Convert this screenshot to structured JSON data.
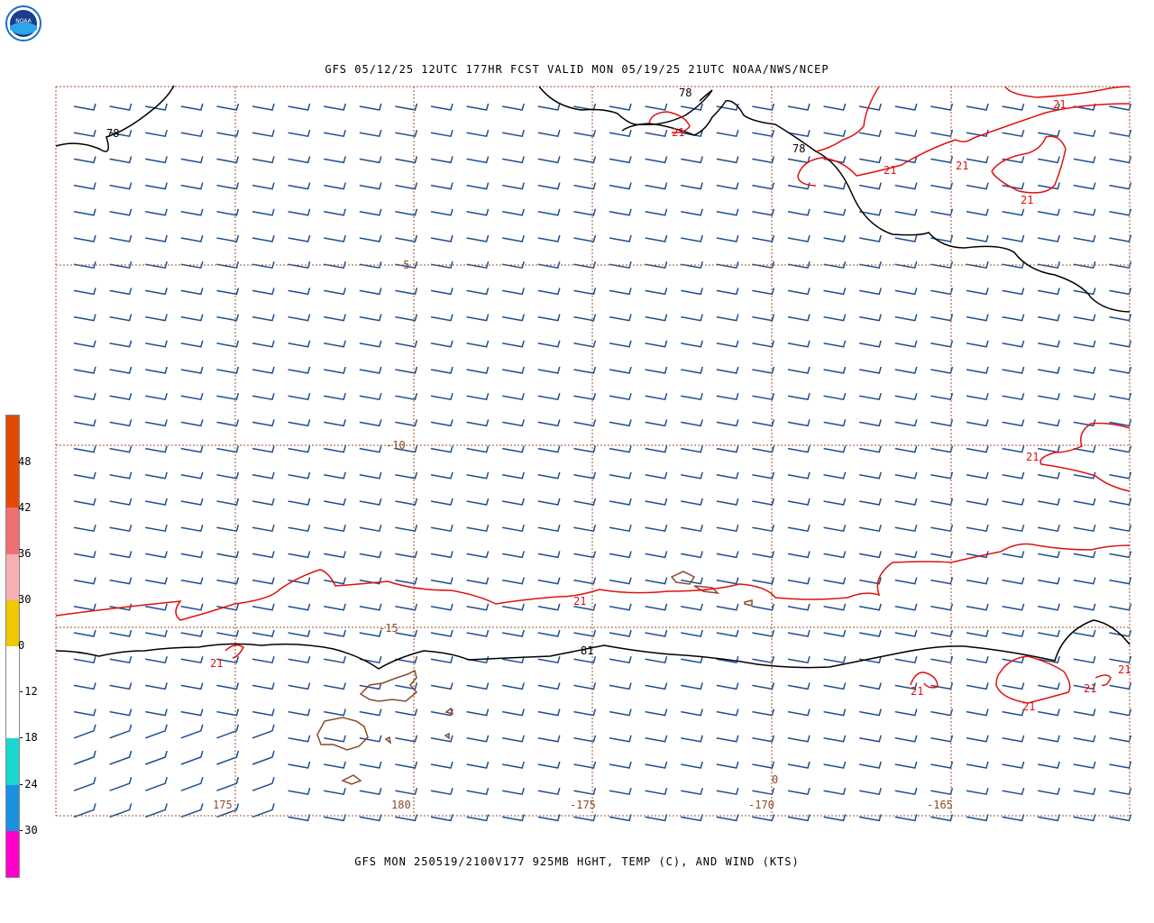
{
  "header": {
    "title": "GFS 05/12/25 12UTC 177HR FCST VALID MON 05/19/25 21UTC NOAA/NWS/NCEP",
    "logo_text": "NOAA"
  },
  "footer": {
    "title": "GFS MON 250519/2100V177 925MB HGHT, TEMP (C), AND WIND (KTS)"
  },
  "map": {
    "lat_labels": [
      "-5",
      "-10",
      "-15"
    ],
    "lon_labels": [
      "175",
      "180",
      "-175",
      "-170",
      "-165"
    ],
    "height_contour_label": "78",
    "height_contour_label_2": "81",
    "temp_contour_label": "21",
    "zero_label": "0",
    "colors": {
      "height_contour": "#000000",
      "temp_contour": "#e01010",
      "wind_barbs": "#1f4f8f",
      "coastline": "#8b4a2b",
      "grid": "#a0522d"
    }
  },
  "colorbar": {
    "labels": [
      "48",
      "42",
      "36",
      "30",
      "0",
      "-12",
      "-18",
      "-24",
      "-30"
    ],
    "colors": [
      "#e24a00",
      "#f07070",
      "#f6b0b6",
      "#f0c800",
      "#ffffff",
      "#18d8d0",
      "#1a90e0",
      "#ff00cc",
      "#8a3ee0"
    ]
  }
}
